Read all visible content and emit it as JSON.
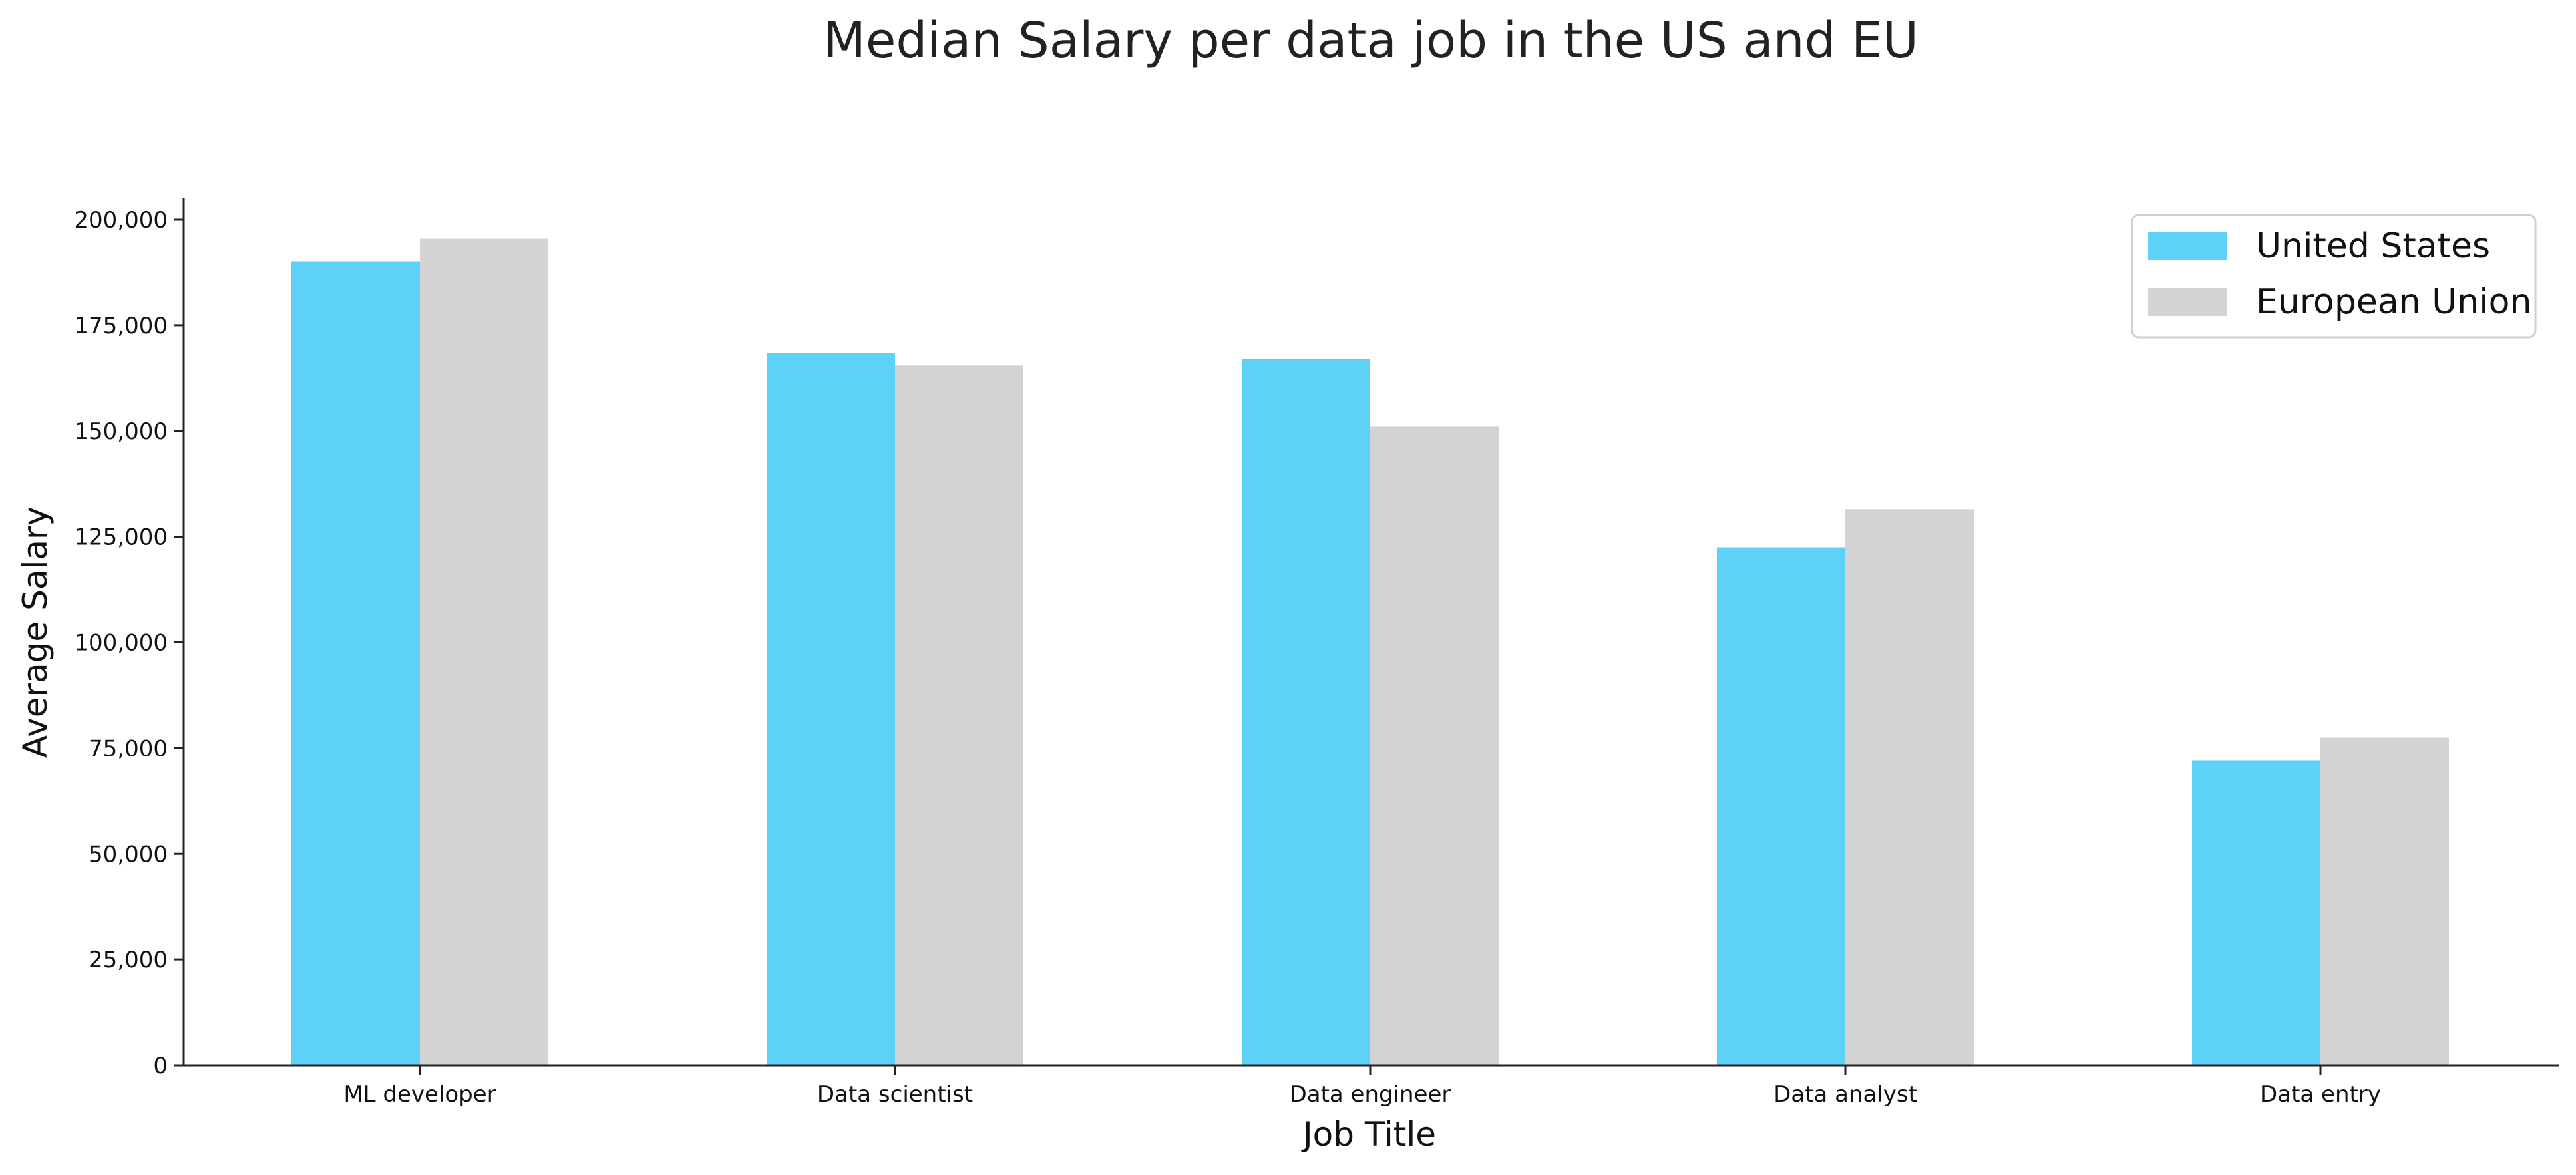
{
  "chart_data": {
    "type": "bar",
    "title": "Median Salary per data job in the US and EU",
    "xlabel": "Job Title",
    "ylabel": "Average Salary",
    "categories": [
      "ML developer",
      "Data scientist",
      "Data engineer",
      "Data analyst",
      "Data entry"
    ],
    "series": [
      {
        "name": "United States",
        "color": "#5dd1f6",
        "values": [
          190000,
          168500,
          167000,
          122500,
          72000
        ]
      },
      {
        "name": "European Union",
        "color": "#d3d3d3",
        "values": [
          195500,
          165500,
          151000,
          131500,
          77500
        ]
      }
    ],
    "ylim": [
      0,
      205000
    ],
    "yticks": [
      0,
      25000,
      50000,
      75000,
      100000,
      125000,
      150000,
      175000,
      200000
    ],
    "ytick_labels": [
      "0",
      "25,000",
      "50,000",
      "75,000",
      "100,000",
      "125,000",
      "150,000",
      "175,000",
      "200,000"
    ],
    "grid": false,
    "legend_position": "top-right"
  }
}
